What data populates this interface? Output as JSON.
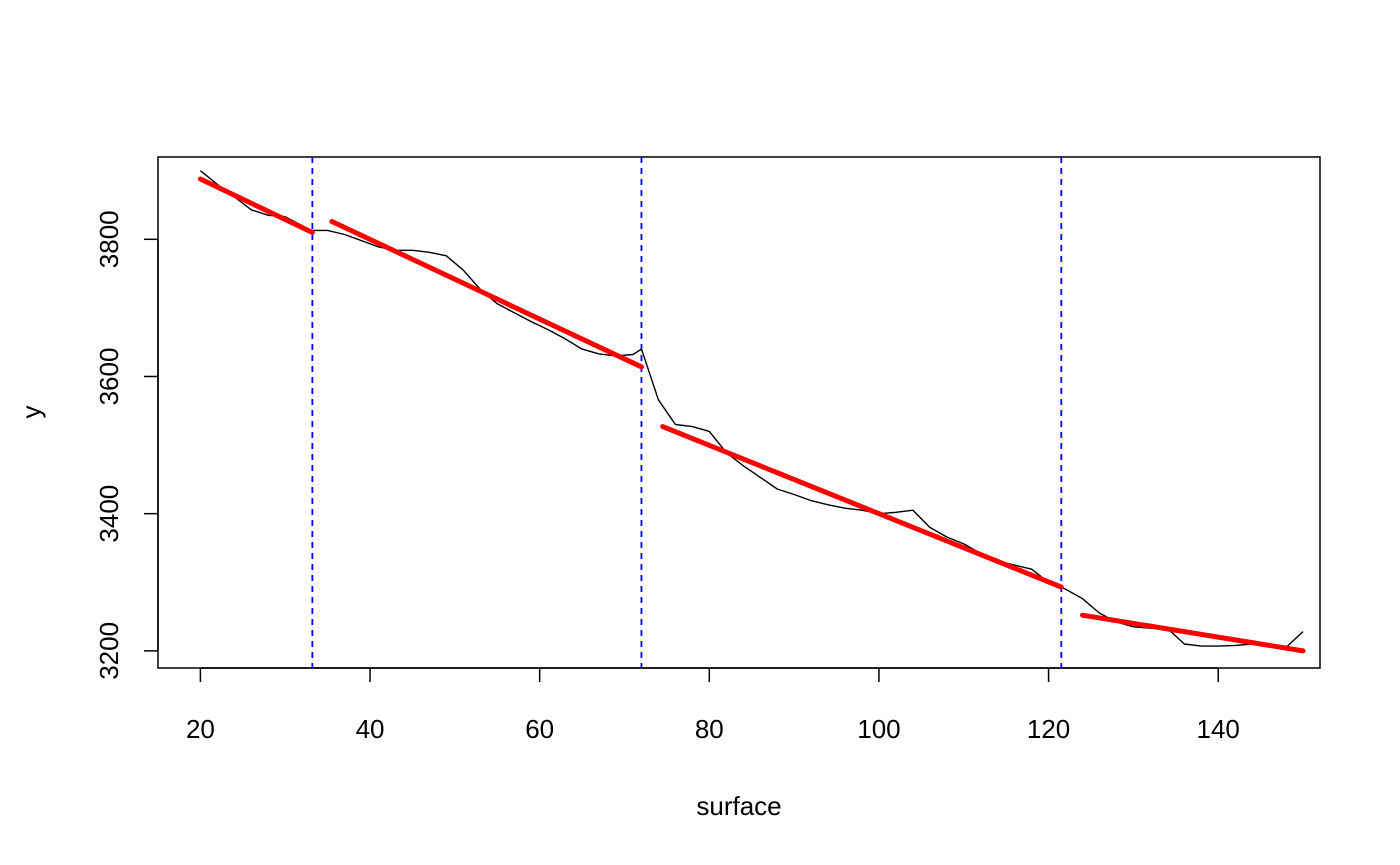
{
  "chart_data": {
    "type": "line",
    "title": "",
    "xlabel": "surface",
    "ylabel": "y",
    "xlim": [
      15,
      152
    ],
    "ylim": [
      3175,
      3920
    ],
    "x_ticks": [
      20,
      40,
      60,
      80,
      100,
      120,
      140
    ],
    "y_ticks": [
      3200,
      3400,
      3600,
      3800
    ],
    "grid": false,
    "observed": {
      "color": "#000000",
      "x": [
        20,
        22,
        24,
        26,
        28,
        30,
        32,
        33,
        35,
        37,
        39,
        41,
        43,
        45,
        47,
        49,
        51,
        53,
        55,
        57,
        59,
        61,
        63,
        65,
        67,
        69,
        71,
        72,
        74,
        76,
        78,
        80,
        82,
        84,
        86,
        88,
        90,
        92,
        94,
        96,
        98,
        100,
        102,
        104,
        106,
        108,
        110,
        112,
        114,
        116,
        118,
        120,
        122,
        124,
        126,
        128,
        130,
        132,
        134,
        136,
        138,
        140,
        142,
        144,
        146,
        148,
        150
      ],
      "y": [
        3900,
        3880,
        3862,
        3843,
        3835,
        3833,
        3820,
        3813,
        3813,
        3807,
        3798,
        3789,
        3784,
        3784,
        3781,
        3776,
        3755,
        3727,
        3706,
        3693,
        3680,
        3668,
        3655,
        3640,
        3633,
        3630,
        3632,
        3640,
        3566,
        3530,
        3527,
        3520,
        3489,
        3470,
        3453,
        3436,
        3428,
        3419,
        3413,
        3408,
        3405,
        3400,
        3402,
        3405,
        3380,
        3366,
        3356,
        3342,
        3331,
        3325,
        3319,
        3300,
        3290,
        3276,
        3255,
        3242,
        3235,
        3233,
        3233,
        3210,
        3207,
        3207,
        3208,
        3210,
        3208,
        3205,
        3228
      ]
    },
    "segments": {
      "color": "#ff0000",
      "lines": [
        {
          "x": [
            20,
            33.2
          ],
          "y": [
            3888,
            3810
          ]
        },
        {
          "x": [
            35.5,
            72
          ],
          "y": [
            3826,
            3614
          ]
        },
        {
          "x": [
            74.5,
            121.5
          ],
          "y": [
            3527,
            3293
          ]
        },
        {
          "x": [
            124,
            150
          ],
          "y": [
            3252,
            3200
          ]
        }
      ]
    },
    "breakpoints": {
      "color": "#0000ff",
      "x": [
        33.2,
        72,
        121.5
      ]
    }
  }
}
